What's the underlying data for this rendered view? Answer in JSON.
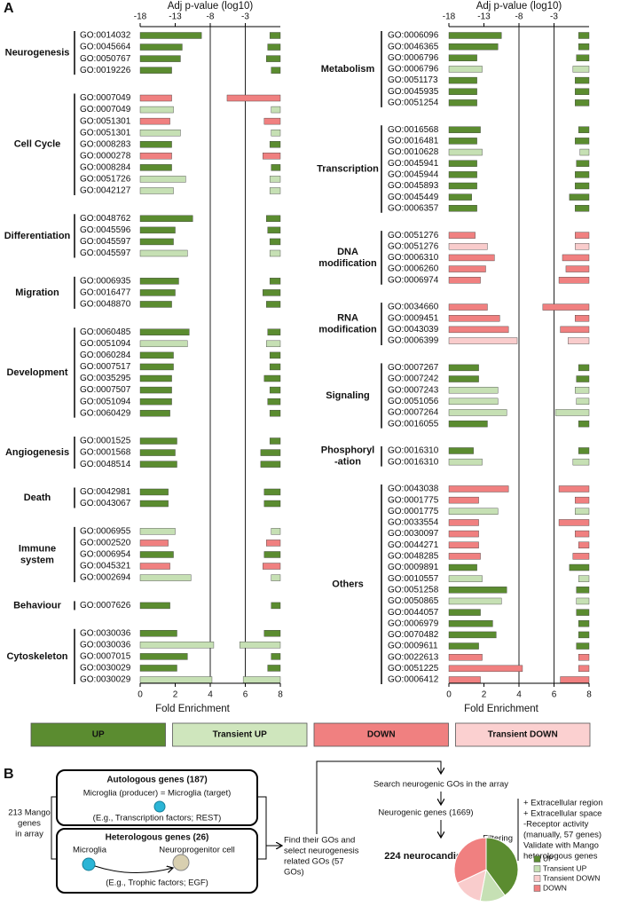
{
  "panel_labels": [
    "A",
    "B"
  ],
  "chart_data": [
    {
      "type": "bar",
      "orientation": "horizontal",
      "x2label": "Adj p-value (log10)",
      "xlabel": "Fold Enrichment",
      "xlim": [
        0,
        8
      ],
      "xticks": [
        0,
        2,
        4,
        6,
        8
      ],
      "x2lim": [
        -18,
        2
      ],
      "x2ticks": [
        -18,
        -13,
        -8,
        -3
      ],
      "reference_lines": [
        4,
        6
      ],
      "groups": [
        {
          "name": [
            "Neurogenesis"
          ],
          "categories": [
            "GO:0014032",
            "GO:0045664",
            "GO:0050767",
            "GO:0019226"
          ],
          "fold_enrichment": [
            3.5,
            2.4,
            2.3,
            1.8
          ],
          "pvalue": [
            0.5,
            0.2,
            0,
            0.7
          ],
          "colors": [
            "#5b8c30",
            "#5b8c30",
            "#5b8c30",
            "#5b8c30"
          ]
        },
        {
          "name": [
            "Cell Cycle"
          ],
          "categories": [
            "GO:0007049",
            "GO:0007049",
            "GO:0051301",
            "GO:0051301",
            "GO:0008283",
            "GO:0000278",
            "GO:0008284",
            "GO:0051726",
            "GO:0042127"
          ],
          "fold_enrichment": [
            1.8,
            1.9,
            1.7,
            2.3,
            1.8,
            1.8,
            1.8,
            2.6,
            1.9
          ],
          "pvalue": [
            -5.6,
            0.7,
            -0.3,
            0.7,
            0.5,
            -0.5,
            0.7,
            0.5,
            0.5
          ],
          "colors": [
            "#f08080",
            "#c6e0b4",
            "#f08080",
            "#c6e0b4",
            "#5b8c30",
            "#f08080",
            "#5b8c30",
            "#c6e0b4",
            "#c6e0b4"
          ]
        },
        {
          "name": [
            "Differentiation"
          ],
          "categories": [
            "GO:0048762",
            "GO:0045596",
            "GO:0045597",
            "GO:0045597"
          ],
          "fold_enrichment": [
            3.0,
            2.0,
            1.9,
            2.7
          ],
          "pvalue": [
            0,
            0.2,
            0.5,
            0.5
          ],
          "colors": [
            "#5b8c30",
            "#5b8c30",
            "#5b8c30",
            "#c6e0b4"
          ]
        },
        {
          "name": [
            "Migration"
          ],
          "categories": [
            "GO:0006935",
            "GO:0016477",
            "GO:0048870"
          ],
          "fold_enrichment": [
            2.2,
            2.0,
            1.8
          ],
          "pvalue": [
            0.5,
            -0.5,
            0
          ],
          "colors": [
            "#5b8c30",
            "#5b8c30",
            "#5b8c30"
          ]
        },
        {
          "name": [
            "Development"
          ],
          "categories": [
            "GO:0060485",
            "GO:0051094",
            "GO:0060284",
            "GO:0007517",
            "GO:0035295",
            "GO:0007507",
            "GO:0051094",
            "GO:0060429"
          ],
          "fold_enrichment": [
            2.8,
            2.7,
            1.9,
            1.9,
            1.8,
            1.8,
            1.8,
            1.7
          ],
          "pvalue": [
            0.2,
            0,
            0.5,
            0.5,
            -0.3,
            0.5,
            0.2,
            0.5
          ],
          "colors": [
            "#5b8c30",
            "#c6e0b4",
            "#5b8c30",
            "#5b8c30",
            "#5b8c30",
            "#5b8c30",
            "#5b8c30",
            "#5b8c30"
          ]
        },
        {
          "name": [
            "Angiogenesis"
          ],
          "categories": [
            "GO:0001525",
            "GO:0001568",
            "GO:0048514"
          ],
          "fold_enrichment": [
            2.1,
            2.0,
            2.1
          ],
          "pvalue": [
            0.5,
            -0.8,
            -0.8
          ],
          "colors": [
            "#5b8c30",
            "#5b8c30",
            "#5b8c30"
          ]
        },
        {
          "name": [
            "Death"
          ],
          "categories": [
            "GO:0042981",
            "GO:0043067"
          ],
          "fold_enrichment": [
            1.6,
            1.6
          ],
          "pvalue": [
            -0.3,
            -0.3
          ],
          "colors": [
            "#5b8c30",
            "#5b8c30"
          ]
        },
        {
          "name": [
            "Immune",
            "system"
          ],
          "categories": [
            "GO:0006955",
            "GO:0002520",
            "GO:0006954",
            "GO:0045321",
            "GO:0002694"
          ],
          "fold_enrichment": [
            2.0,
            1.6,
            1.9,
            1.7,
            2.9
          ],
          "pvalue": [
            0.7,
            0,
            -0.3,
            -0.5,
            0.7
          ],
          "colors": [
            "#c6e0b4",
            "#f08080",
            "#5b8c30",
            "#f08080",
            "#c6e0b4"
          ]
        },
        {
          "name": [
            "Behaviour"
          ],
          "categories": [
            "GO:0007626"
          ],
          "fold_enrichment": [
            1.7
          ],
          "pvalue": [
            0.7
          ],
          "colors": [
            "#5b8c30"
          ]
        },
        {
          "name": [
            "Cytoskeleton"
          ],
          "categories": [
            "GO:0030036",
            "GO:0030036",
            "GO:0007015",
            "GO:0030029",
            "GO:0030029"
          ],
          "fold_enrichment": [
            2.1,
            4.2,
            2.7,
            2.1,
            4.1
          ],
          "pvalue": [
            -0.3,
            -3.8,
            0.7,
            0.2,
            -3.3
          ],
          "colors": [
            "#5b8c30",
            "#c6e0b4",
            "#5b8c30",
            "#5b8c30",
            "#c6e0b4"
          ]
        }
      ]
    },
    {
      "type": "bar",
      "orientation": "horizontal",
      "x2label": "Adj p-value (log10)",
      "xlabel": "Fold Enrichment",
      "xlim": [
        0,
        8
      ],
      "xticks": [
        0,
        2,
        4,
        6,
        8
      ],
      "x2lim": [
        -18,
        2
      ],
      "x2ticks": [
        -18,
        -13,
        -8,
        -3
      ],
      "reference_lines": [
        4,
        6
      ],
      "groups": [
        {
          "name": [
            "Metabolism"
          ],
          "categories": [
            "GO:0006096",
            "GO:0046365",
            "GO:0006796",
            "GO:0006796",
            "GO:0051173",
            "GO:0045935",
            "GO:0051254"
          ],
          "fold_enrichment": [
            3.0,
            2.8,
            1.6,
            1.9,
            1.6,
            1.6,
            1.6
          ],
          "pvalue": [
            0.5,
            0.5,
            0.2,
            -0.3,
            0,
            0,
            0
          ],
          "colors": [
            "#5b8c30",
            "#5b8c30",
            "#5b8c30",
            "#c6e0b4",
            "#5b8c30",
            "#5b8c30",
            "#5b8c30"
          ]
        },
        {
          "name": [
            "Transcription"
          ],
          "categories": [
            "GO:0016568",
            "GO:0016481",
            "GO:0010628",
            "GO:0045941",
            "GO:0045944",
            "GO:0045893",
            "GO:0045449",
            "GO:0006357"
          ],
          "fold_enrichment": [
            1.8,
            1.6,
            1.9,
            1.6,
            1.6,
            1.6,
            1.3,
            1.6
          ],
          "pvalue": [
            0.5,
            0,
            0.7,
            0.2,
            0,
            0,
            -0.8,
            0
          ],
          "colors": [
            "#5b8c30",
            "#5b8c30",
            "#c6e0b4",
            "#5b8c30",
            "#5b8c30",
            "#5b8c30",
            "#5b8c30",
            "#5b8c30"
          ]
        },
        {
          "name": [
            "DNA",
            "modification"
          ],
          "categories": [
            "GO:0051276",
            "GO:0051276",
            "GO:0006310",
            "GO:0006260",
            "GO:0006974"
          ],
          "fold_enrichment": [
            1.5,
            2.2,
            2.6,
            2.1,
            1.8
          ],
          "pvalue": [
            0,
            0,
            -1.8,
            -1.3,
            -2.3
          ],
          "colors": [
            "#f08080",
            "#f9cccc",
            "#f08080",
            "#f08080",
            "#f08080"
          ]
        },
        {
          "name": [
            "RNA",
            "modification"
          ],
          "categories": [
            "GO:0034660",
            "GO:0009451",
            "GO:0043039",
            "GO:0006399"
          ],
          "fold_enrichment": [
            2.2,
            2.9,
            3.4,
            3.9
          ],
          "pvalue": [
            -4.6,
            0,
            -2.1,
            -1.0
          ],
          "colors": [
            "#f08080",
            "#f08080",
            "#f08080",
            "#f9cccc"
          ]
        },
        {
          "name": [
            "Signaling"
          ],
          "categories": [
            "GO:0007267",
            "GO:0007242",
            "GO:0007243",
            "GO:0051056",
            "GO:0007264",
            "GO:0016055"
          ],
          "fold_enrichment": [
            1.7,
            1.7,
            2.8,
            2.8,
            3.3,
            2.2
          ],
          "pvalue": [
            0.5,
            0.2,
            0,
            0.2,
            -2.8,
            0.5
          ],
          "colors": [
            "#5b8c30",
            "#5b8c30",
            "#c6e0b4",
            "#c6e0b4",
            "#c6e0b4",
            "#5b8c30"
          ]
        },
        {
          "name": [
            "Phosphoryl",
            "-ation"
          ],
          "categories": [
            "GO:0016310",
            "GO:0016310"
          ],
          "fold_enrichment": [
            1.4,
            1.9
          ],
          "pvalue": [
            0.5,
            -0.3
          ],
          "colors": [
            "#5b8c30",
            "#c6e0b4"
          ]
        },
        {
          "name": [
            "Others"
          ],
          "categories": [
            "GO:0043038",
            "GO:0001775",
            "GO:0001775",
            "GO:0033554",
            "GO:0030097",
            "GO:0044271",
            "GO:0048285",
            "GO:0009891",
            "GO:0010557",
            "GO:0051258",
            "GO:0050865",
            "GO:0044057",
            "GO:0006979",
            "GO:0070482",
            "GO:0009611",
            "GO:0022613",
            "GO:0051225",
            "GO:0006412"
          ],
          "fold_enrichment": [
            3.4,
            1.7,
            2.8,
            1.7,
            1.7,
            1.7,
            1.8,
            1.6,
            1.9,
            3.3,
            3.0,
            1.8,
            2.5,
            2.7,
            1.7,
            1.9,
            4.2,
            1.8
          ],
          "pvalue": [
            -2.3,
            0,
            0,
            -2.3,
            0,
            0.5,
            -0.3,
            -0.8,
            0.5,
            0.2,
            0.2,
            0.2,
            0.5,
            0.5,
            0.2,
            0.5,
            0.5,
            -2.1
          ],
          "colors": [
            "#f08080",
            "#f08080",
            "#c6e0b4",
            "#f08080",
            "#f08080",
            "#f08080",
            "#f08080",
            "#5b8c30",
            "#c6e0b4",
            "#5b8c30",
            "#c6e0b4",
            "#5b8c30",
            "#5b8c30",
            "#5b8c30",
            "#5b8c30",
            "#f08080",
            "#f08080",
            "#f08080"
          ]
        }
      ]
    },
    {
      "type": "pie",
      "title": "224  neurocandidates",
      "categories": [
        "UP",
        "Transient UP",
        "Transient DOWN",
        "DOWN"
      ],
      "values": [
        40,
        13,
        15,
        32
      ],
      "colors": [
        "#5b8c30",
        "#c6e0b4",
        "#f9cccc",
        "#f08080"
      ]
    }
  ],
  "legend": {
    "labels": [
      "UP",
      "Transient UP",
      "DOWN",
      "Transient DOWN"
    ],
    "colors": [
      "#5b8c30",
      "#cfe6bd",
      "#f08080",
      "#fbd0d0"
    ]
  },
  "diagram": {
    "source": [
      "213 Mango",
      "genes",
      "in array"
    ],
    "autologous": {
      "title": "Autologous genes (187)",
      "relation": "Microglia (producer) = Microglia (target)",
      "example": "(E.g., Transcription factors; REST)"
    },
    "heterologous": {
      "title": "Heterologous genes (26)",
      "producer": "Microglia",
      "target": "Neuroprogenitor cell",
      "example": "(E.g., Trophic factors; EGF)"
    },
    "step1": [
      "Find their GOs and",
      "select neurogenesis",
      "related GOs (57",
      "GOs)"
    ],
    "step2": "Search neurogenic GOs in the array",
    "step3": "Neurogenic genes (1669)",
    "filtering": "Filtering",
    "filters": [
      "+ Extracellular region",
      "+ Extracellular space",
      "-Receptor activity",
      "(manually, 57 genes)",
      "Validate with Mango",
      "heterologous genes"
    ]
  }
}
